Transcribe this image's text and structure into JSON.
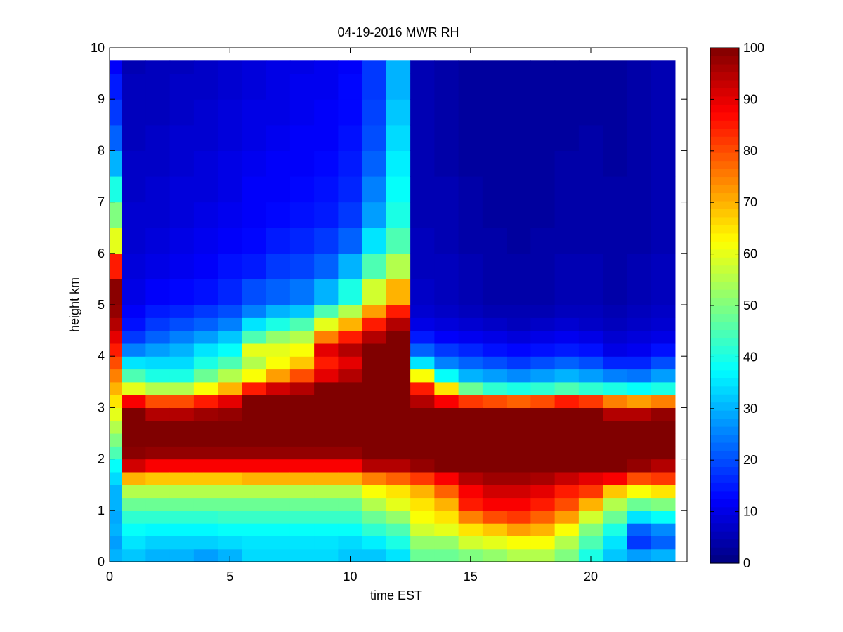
{
  "chart_data": {
    "type": "heatmap",
    "title": "04-19-2016 MWR RH",
    "xlabel": "time EST",
    "ylabel": "height km",
    "xlim": [
      0,
      24
    ],
    "ylim": [
      0,
      10
    ],
    "xticks": [
      0,
      5,
      10,
      15,
      20
    ],
    "yticks": [
      0,
      1,
      2,
      3,
      4,
      5,
      6,
      7,
      8,
      9,
      10
    ],
    "colorbar": {
      "min": 0,
      "max": 100,
      "ticks": [
        0,
        10,
        20,
        30,
        40,
        50,
        60,
        70,
        80,
        90,
        100
      ],
      "colormap": "jet"
    },
    "x": [
      0,
      1,
      2,
      3,
      4,
      5,
      6,
      7,
      8,
      9,
      10,
      11,
      12,
      13,
      14,
      15,
      16,
      17,
      18,
      19,
      20,
      21,
      22,
      23
    ],
    "y": [
      0.0,
      0.25,
      0.5,
      0.75,
      1.0,
      1.25,
      1.5,
      1.75,
      2.0,
      2.25,
      2.5,
      2.75,
      3.0,
      3.25,
      3.5,
      3.75,
      4.0,
      4.25,
      4.5,
      4.75,
      5.0,
      5.5,
      6.0,
      6.5,
      7.0,
      7.5,
      8.0,
      8.5,
      9.0,
      9.5
    ],
    "y_top": 9.75,
    "z": [
      [
        30,
        28,
        30,
        29,
        30,
        30,
        34,
        38,
        45,
        50,
        55,
        60,
        65,
        70,
        75,
        80,
        85,
        90,
        95,
        98,
        99,
        85,
        60,
        50,
        40,
        30,
        22,
        18,
        15,
        12
      ],
      [
        32,
        35,
        38,
        42,
        48,
        55,
        70,
        92,
        99,
        100,
        100,
        100,
        88,
        60,
        45,
        35,
        25,
        18,
        14,
        12,
        10,
        9,
        8,
        8,
        7,
        7,
        6,
        6,
        6,
        5
      ],
      [
        30,
        33,
        37,
        42,
        48,
        55,
        68,
        88,
        98,
        100,
        100,
        95,
        80,
        55,
        40,
        34,
        28,
        22,
        18,
        15,
        12,
        10,
        9,
        8,
        8,
        7,
        7,
        6,
        6,
        6
      ],
      [
        30,
        33,
        37,
        42,
        48,
        55,
        68,
        88,
        98,
        100,
        100,
        95,
        80,
        55,
        40,
        34,
        30,
        25,
        20,
        16,
        13,
        11,
        10,
        9,
        9,
        8,
        8,
        7,
        7,
        6
      ],
      [
        28,
        33,
        37,
        42,
        48,
        55,
        68,
        88,
        98,
        100,
        100,
        97,
        85,
        62,
        48,
        40,
        35,
        28,
        22,
        18,
        14,
        12,
        11,
        10,
        9,
        9,
        8,
        8,
        7,
        7
      ],
      [
        30,
        34,
        38,
        43,
        48,
        55,
        68,
        88,
        98,
        100,
        100,
        98,
        90,
        70,
        55,
        45,
        38,
        32,
        25,
        20,
        16,
        14,
        12,
        11,
        10,
        10,
        9,
        9,
        8,
        8
      ],
      [
        34,
        35,
        38,
        43,
        48,
        55,
        70,
        88,
        98,
        100,
        100,
        100,
        100,
        85,
        62,
        55,
        60,
        45,
        35,
        25,
        20,
        15,
        13,
        12,
        12,
        11,
        10,
        10,
        9,
        9
      ],
      [
        34,
        35,
        38,
        43,
        48,
        55,
        70,
        88,
        98,
        100,
        100,
        100,
        100,
        92,
        72,
        62,
        60,
        52,
        40,
        30,
        22,
        18,
        15,
        13,
        12,
        12,
        11,
        10,
        10,
        10
      ],
      [
        34,
        35,
        38,
        43,
        48,
        55,
        70,
        88,
        98,
        100,
        100,
        100,
        100,
        95,
        80,
        68,
        62,
        55,
        45,
        32,
        24,
        19,
        16,
        14,
        13,
        12,
        12,
        11,
        11,
        10
      ],
      [
        34,
        35,
        38,
        43,
        48,
        55,
        70,
        88,
        98,
        100,
        100,
        100,
        100,
        100,
        90,
        85,
        90,
        75,
        60,
        45,
        30,
        22,
        18,
        15,
        14,
        13,
        12,
        12,
        11,
        11
      ],
      [
        32,
        34,
        38,
        43,
        48,
        55,
        70,
        88,
        98,
        100,
        100,
        100,
        100,
        100,
        95,
        90,
        95,
        85,
        70,
        55,
        40,
        30,
        22,
        18,
        16,
        15,
        14,
        13,
        13,
        12
      ],
      [
        32,
        36,
        42,
        48,
        55,
        62,
        75,
        95,
        100,
        100,
        100,
        100,
        100,
        100,
        100,
        100,
        100,
        95,
        85,
        72,
        58,
        45,
        35,
        28,
        25,
        22,
        20,
        19,
        18,
        18
      ],
      [
        35,
        40,
        45,
        52,
        60,
        65,
        78,
        95,
        100,
        100,
        100,
        100,
        100,
        100,
        100,
        100,
        100,
        100,
        95,
        85,
        70,
        55,
        45,
        40,
        38,
        36,
        34,
        32,
        30,
        30
      ],
      [
        48,
        52,
        58,
        62,
        65,
        70,
        82,
        98,
        100,
        100,
        100,
        100,
        95,
        85,
        62,
        35,
        22,
        15,
        10,
        8,
        7,
        6,
        6,
        5,
        5,
        5,
        5,
        5,
        5,
        5
      ],
      [
        48,
        52,
        60,
        65,
        70,
        78,
        88,
        100,
        100,
        100,
        100,
        100,
        88,
        65,
        38,
        25,
        18,
        12,
        9,
        7,
        6,
        6,
        5,
        5,
        5,
        4,
        4,
        4,
        4,
        4
      ],
      [
        50,
        58,
        65,
        75,
        85,
        88,
        95,
        100,
        100,
        100,
        100,
        100,
        82,
        48,
        30,
        22,
        16,
        11,
        8,
        6,
        5,
        5,
        4,
        4,
        4,
        3,
        3,
        3,
        3,
        3
      ],
      [
        52,
        60,
        68,
        80,
        88,
        92,
        97,
        100,
        100,
        100,
        100,
        100,
        80,
        42,
        28,
        20,
        14,
        10,
        7,
        5,
        4,
        4,
        4,
        3,
        3,
        3,
        3,
        3,
        3,
        3
      ],
      [
        55,
        62,
        72,
        82,
        88,
        92,
        97,
        100,
        100,
        100,
        100,
        100,
        78,
        40,
        26,
        18,
        13,
        9,
        6,
        5,
        4,
        4,
        3,
        3,
        3,
        3,
        3,
        3,
        3,
        3
      ],
      [
        55,
        62,
        70,
        78,
        85,
        90,
        96,
        100,
        100,
        100,
        100,
        100,
        80,
        42,
        28,
        20,
        14,
        10,
        7,
        5,
        4,
        4,
        4,
        3,
        3,
        3,
        3,
        3,
        3,
        3
      ],
      [
        50,
        55,
        62,
        72,
        80,
        85,
        93,
        100,
        100,
        100,
        100,
        100,
        85,
        45,
        30,
        22,
        15,
        11,
        8,
        6,
        5,
        5,
        4,
        4,
        4,
        4,
        3,
        3,
        3,
        3
      ],
      [
        40,
        45,
        50,
        58,
        70,
        82,
        90,
        100,
        100,
        100,
        100,
        100,
        82,
        42,
        28,
        20,
        14,
        10,
        7,
        6,
        5,
        5,
        4,
        4,
        4,
        4,
        4,
        3,
        3,
        3
      ],
      [
        32,
        35,
        40,
        48,
        55,
        68,
        88,
        100,
        100,
        100,
        100,
        95,
        75,
        40,
        25,
        16,
        10,
        8,
        6,
        5,
        4,
        4,
        4,
        4,
        4,
        3,
        3,
        3,
        3,
        3
      ],
      [
        28,
        18,
        22,
        35,
        48,
        62,
        80,
        98,
        100,
        100,
        100,
        95,
        72,
        38,
        24,
        16,
        11,
        9,
        7,
        6,
        5,
        5,
        4,
        4,
        4,
        4,
        4,
        4,
        4,
        4
      ],
      [
        30,
        22,
        26,
        38,
        50,
        65,
        82,
        95,
        100,
        100,
        100,
        98,
        75,
        40,
        28,
        20,
        14,
        10,
        8,
        7,
        6,
        6,
        5,
        5,
        5,
        5,
        5,
        5,
        5,
        5
      ]
    ]
  }
}
